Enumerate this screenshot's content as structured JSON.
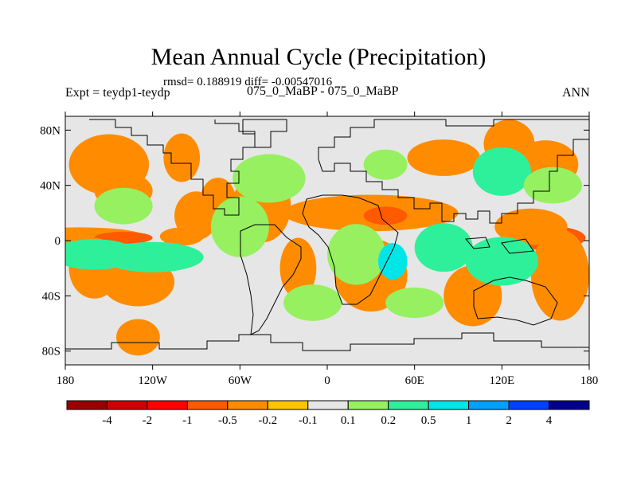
{
  "title": "Mean Annual Cycle (Precipitation)",
  "stats": {
    "rmsd_label": "rmsd=",
    "rmsd": "0.188919",
    "diff_label": "diff=",
    "diff": "-0.00547016"
  },
  "left_label": "Expt = teydp1-teydp",
  "center_label": "075_0_MaBP - 075_0_MaBP",
  "right_label": "ANN",
  "chart_data": {
    "type": "heatmap",
    "title": "Mean Annual Cycle (Precipitation)",
    "xlabel": "",
    "ylabel": "",
    "x_range": [
      -180,
      180
    ],
    "y_range": [
      -90,
      90
    ],
    "x_ticks": [
      {
        "value": -180,
        "label": "180"
      },
      {
        "value": -120,
        "label": "120W"
      },
      {
        "value": -60,
        "label": "60W"
      },
      {
        "value": 0,
        "label": "0"
      },
      {
        "value": 60,
        "label": "60E"
      },
      {
        "value": 120,
        "label": "120E"
      },
      {
        "value": 180,
        "label": "180"
      }
    ],
    "y_ticks": [
      {
        "value": 80,
        "label": "80N"
      },
      {
        "value": 40,
        "label": "40N"
      },
      {
        "value": 0,
        "label": "0"
      },
      {
        "value": -40,
        "label": "40S"
      },
      {
        "value": -80,
        "label": "80S"
      }
    ],
    "background_color": "#e6e6e6",
    "colorbar": {
      "levels": [
        "-4",
        "-2",
        "-1",
        "-0.5",
        "-0.2",
        "-0.1",
        "0.1",
        "0.2",
        "0.5",
        "1",
        "2",
        "4"
      ],
      "colors": [
        "#9b0000",
        "#d10000",
        "#ff0000",
        "#ff5a00",
        "#ff8c00",
        "#ffc400",
        "#e6e6e6",
        "#96f060",
        "#2ff09a",
        "#00e6e6",
        "#00a0ff",
        "#0040ff",
        "#00008c"
      ]
    },
    "regions": [
      {
        "lon": -170,
        "lat": 3,
        "w": 90,
        "h": 3,
        "value": -0.3
      },
      {
        "lon": -140,
        "lat": 2,
        "w": 40,
        "h": 2,
        "value": -0.7
      },
      {
        "lon": -100,
        "lat": 3,
        "w": 30,
        "h": 3,
        "value": -0.4
      },
      {
        "lon": 150,
        "lat": 2,
        "w": 55,
        "h": 4,
        "value": -0.8
      },
      {
        "lon": 140,
        "lat": 10,
        "w": 50,
        "h": 6,
        "value": -0.3
      },
      {
        "lon": 30,
        "lat": 20,
        "w": 120,
        "h": 6,
        "value": -0.3
      },
      {
        "lon": 40,
        "lat": 18,
        "w": 30,
        "h": 3,
        "value": -0.6
      },
      {
        "lon": -45,
        "lat": 25,
        "w": 40,
        "h": 12,
        "value": -0.3
      },
      {
        "lon": -90,
        "lat": 18,
        "w": 30,
        "h": 8,
        "value": -0.4
      },
      {
        "lon": -75,
        "lat": 28,
        "w": 25,
        "h": 8,
        "value": -0.3
      },
      {
        "lon": -150,
        "lat": 55,
        "w": 55,
        "h": 10,
        "value": -0.3
      },
      {
        "lon": -100,
        "lat": 60,
        "w": 25,
        "h": 8,
        "value": -0.3
      },
      {
        "lon": -140,
        "lat": 36,
        "w": 40,
        "h": 6,
        "value": -0.2
      },
      {
        "lon": 150,
        "lat": 55,
        "w": 45,
        "h": 8,
        "value": -0.3
      },
      {
        "lon": 125,
        "lat": 70,
        "w": 35,
        "h": 8,
        "value": -0.2
      },
      {
        "lon": 80,
        "lat": 60,
        "w": 50,
        "h": 6,
        "value": -0.2
      },
      {
        "lon": -160,
        "lat": -20,
        "w": 35,
        "h": 10,
        "value": -0.3
      },
      {
        "lon": -130,
        "lat": -30,
        "w": 50,
        "h": 8,
        "value": -0.2
      },
      {
        "lon": 160,
        "lat": -25,
        "w": 40,
        "h": 15,
        "value": -0.3
      },
      {
        "lon": 100,
        "lat": -40,
        "w": 40,
        "h": 10,
        "value": -0.3
      },
      {
        "lon": 30,
        "lat": -25,
        "w": 50,
        "h": 12,
        "value": -0.3
      },
      {
        "lon": -20,
        "lat": -20,
        "w": 25,
        "h": 10,
        "value": -0.3
      },
      {
        "lon": -130,
        "lat": -70,
        "w": 30,
        "h": 6,
        "value": -0.2
      },
      {
        "lon": -160,
        "lat": -10,
        "w": 60,
        "h": 5,
        "value": 0.3
      },
      {
        "lon": -120,
        "lat": -12,
        "w": 70,
        "h": 5,
        "value": 0.3
      },
      {
        "lon": 120,
        "lat": 50,
        "w": 40,
        "h": 8,
        "value": 0.3
      },
      {
        "lon": 155,
        "lat": 40,
        "w": 40,
        "h": 6,
        "value": 0.2
      },
      {
        "lon": -40,
        "lat": 45,
        "w": 50,
        "h": 8,
        "value": 0.2
      },
      {
        "lon": -60,
        "lat": 10,
        "w": 40,
        "h": 10,
        "value": 0.2
      },
      {
        "lon": 20,
        "lat": -10,
        "w": 40,
        "h": 10,
        "value": 0.2
      },
      {
        "lon": 45,
        "lat": -15,
        "w": 20,
        "h": 6,
        "value": 0.7
      },
      {
        "lon": 80,
        "lat": -5,
        "w": 40,
        "h": 8,
        "value": 0.3
      },
      {
        "lon": 120,
        "lat": -15,
        "w": 50,
        "h": 8,
        "value": 0.3
      },
      {
        "lon": -140,
        "lat": 25,
        "w": 40,
        "h": 6,
        "value": 0.15
      },
      {
        "lon": 40,
        "lat": 55,
        "w": 30,
        "h": 5,
        "value": 0.15
      },
      {
        "lon": -10,
        "lat": -45,
        "w": 40,
        "h": 6,
        "value": 0.15
      },
      {
        "lon": 60,
        "lat": -45,
        "w": 40,
        "h": 5,
        "value": 0.15
      }
    ]
  }
}
